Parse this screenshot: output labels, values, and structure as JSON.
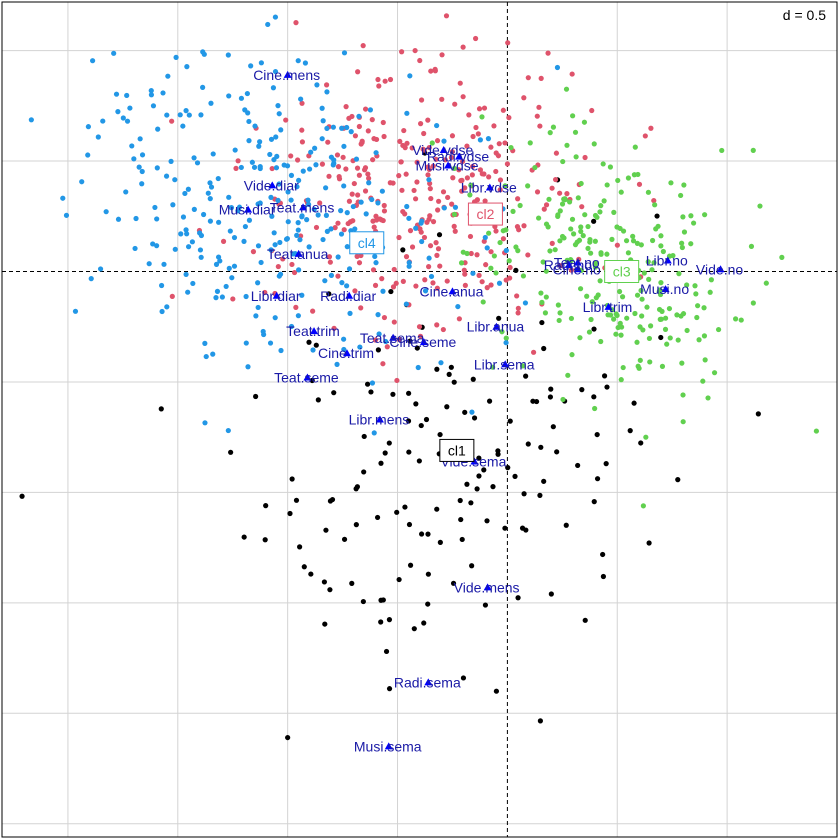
{
  "chart_data": {
    "type": "scatter",
    "scale_label": "d = 0.5",
    "grid_step": 0.5,
    "xlim": [
      -2.3,
      1.5
    ],
    "ylim": [
      -2.56,
      1.22
    ],
    "grid": true,
    "origin_axes": "dashed",
    "colors": {
      "cl1": "#000000",
      "cl2": "#DF536B",
      "cl3": "#61D04F",
      "cl4": "#2297E6",
      "modality": "#0000FF",
      "grid": "#D3D3D3"
    },
    "clusters": [
      {
        "name": "cl1",
        "color": "#000000",
        "label_border": "#000000",
        "center": [
          -0.23,
          -0.81
        ],
        "spread": [
          0.5,
          0.45
        ],
        "corr": 0.1,
        "n": 150,
        "extra": [
          [
            -0.1,
            -1.51
          ],
          [
            -0.55,
            -1.72
          ],
          [
            -0.2,
            -1.84
          ],
          [
            -1.0,
            -2.11
          ],
          [
            -1.1,
            -1.06
          ],
          [
            -0.05,
            -1.9
          ],
          [
            0.2,
            -1.46
          ]
        ]
      },
      {
        "name": "cl2",
        "color": "#DF536B",
        "label_border": "#DF536B",
        "center": [
          -0.4,
          0.32
        ],
        "spread": [
          0.4,
          0.32
        ],
        "corr": 0.0,
        "n": 330,
        "extra": [
          [
            -0.42,
            1.0
          ],
          [
            -0.4,
            -0.25
          ],
          [
            -0.6,
            -0.31
          ]
        ]
      },
      {
        "name": "cl3",
        "color": "#61D04F",
        "label_border": "#61D04F",
        "center": [
          0.47,
          0.04
        ],
        "spread": [
          0.32,
          0.3
        ],
        "corr": -0.35,
        "n": 250,
        "extra": [
          [
            0.8,
            -0.68
          ],
          [
            0.63,
            -0.75
          ],
          [
            0.9,
            -0.4
          ]
        ]
      },
      {
        "name": "cl4",
        "color": "#2297E6",
        "label_border": "#2297E6",
        "center": [
          -1.05,
          0.28
        ],
        "spread": [
          0.45,
          0.37
        ],
        "corr": -0.3,
        "n": 300,
        "extra": [
          [
            -1.27,
            0.98
          ],
          [
            -1.62,
            0.8
          ],
          [
            -1.69,
            0.24
          ],
          [
            -1.55,
            -0.16
          ],
          [
            -1.27,
            -0.72
          ],
          [
            -1.7,
            0.51
          ]
        ]
      }
    ],
    "cluster_labels": [
      {
        "text": "cl1",
        "x": -0.23,
        "y": -0.81
      },
      {
        "text": "cl2",
        "x": -0.1,
        "y": 0.26
      },
      {
        "text": "cl3",
        "x": 0.52,
        "y": 0.0
      },
      {
        "text": "cl4",
        "x": -0.64,
        "y": 0.13
      }
    ],
    "modalities": [
      {
        "label": "Cine.mens",
        "x": -1.0,
        "y": 0.89
      },
      {
        "label": "Vide.vdse",
        "x": -0.29,
        "y": 0.55
      },
      {
        "label": "Radi.vdse",
        "x": -0.22,
        "y": 0.52
      },
      {
        "label": "Musi.vdse",
        "x": -0.27,
        "y": 0.48
      },
      {
        "label": "Libr.vdse",
        "x": -0.08,
        "y": 0.38
      },
      {
        "label": "Vide.diar",
        "x": -1.07,
        "y": 0.39
      },
      {
        "label": "Musi.diar",
        "x": -1.18,
        "y": 0.28
      },
      {
        "label": "Teat.mens",
        "x": -0.93,
        "y": 0.29
      },
      {
        "label": "Teat.anua",
        "x": -0.95,
        "y": 0.08
      },
      {
        "label": "Libr.diar",
        "x": -1.05,
        "y": -0.11
      },
      {
        "label": "Radi.diar",
        "x": -0.72,
        "y": -0.11
      },
      {
        "label": "Cine.anua",
        "x": -0.25,
        "y": -0.09
      },
      {
        "label": "Teat.trim",
        "x": -0.88,
        "y": -0.27
      },
      {
        "label": "Teat.sema",
        "x": -0.52,
        "y": -0.3
      },
      {
        "label": "Cine.seme",
        "x": -0.38,
        "y": -0.32
      },
      {
        "label": "Cine.trim",
        "x": -0.73,
        "y": -0.37
      },
      {
        "label": "Libr.anua",
        "x": -0.05,
        "y": -0.25
      },
      {
        "label": "Libr.sema",
        "x": -0.01,
        "y": -0.42
      },
      {
        "label": "Teat.seme",
        "x": -0.91,
        "y": -0.48
      },
      {
        "label": "Libr.mens",
        "x": -0.58,
        "y": -0.67
      },
      {
        "label": "Vide.sema",
        "x": -0.15,
        "y": -0.86
      },
      {
        "label": "Vide.mens",
        "x": -0.09,
        "y": -1.43
      },
      {
        "label": "Radi.sema",
        "x": -0.36,
        "y": -1.86
      },
      {
        "label": "Musi.sema",
        "x": -0.54,
        "y": -2.15
      },
      {
        "label": "Teat.no",
        "x": 0.32,
        "y": 0.04
      },
      {
        "label": "Cine.no",
        "x": 0.32,
        "y": 0.01
      },
      {
        "label": "Radi.no",
        "x": 0.28,
        "y": 0.03
      },
      {
        "label": "Libr.no",
        "x": 0.73,
        "y": 0.05
      },
      {
        "label": "Vide.no",
        "x": 0.97,
        "y": 0.01
      },
      {
        "label": "Musi.no",
        "x": 0.72,
        "y": -0.08
      },
      {
        "label": "Libr.trim",
        "x": 0.46,
        "y": -0.16
      }
    ]
  }
}
